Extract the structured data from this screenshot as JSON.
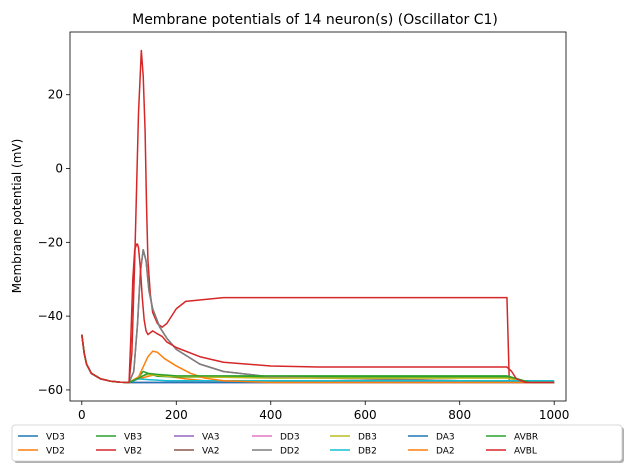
{
  "chart_data": {
    "type": "line",
    "title": "Membrane potentials of 14 neuron(s) (Oscillator C1)",
    "xlabel": "",
    "ylabel": "Membrane potential (mV)",
    "xlim": [
      -25,
      1025
    ],
    "ylim": [
      -63,
      37
    ],
    "xticks": [
      0,
      200,
      400,
      600,
      800,
      1000
    ],
    "yticks": [
      -60,
      -40,
      -20,
      0,
      20
    ],
    "grid": false,
    "legend_position": "bottom",
    "series": [
      {
        "name": "VD3",
        "color": "#1f77b4",
        "x": [
          0,
          5,
          10,
          20,
          40,
          60,
          80,
          100,
          200,
          400,
          600,
          800,
          900,
          950,
          1000
        ],
        "y": [
          -45,
          -50,
          -53,
          -55.5,
          -57,
          -57.6,
          -57.9,
          -58,
          -58,
          -58,
          -58,
          -58,
          -58,
          -58,
          -58
        ]
      },
      {
        "name": "VD2",
        "color": "#ff7f0e",
        "x": [
          0,
          5,
          10,
          20,
          40,
          60,
          80,
          100,
          120,
          150,
          180,
          220,
          260,
          300,
          400,
          600,
          800,
          1000
        ],
        "y": [
          -45,
          -50,
          -53,
          -55.5,
          -57,
          -57.6,
          -57.9,
          -58,
          -57,
          -56,
          -56.3,
          -57,
          -57.5,
          -57.8,
          -58,
          -58,
          -58,
          -58
        ]
      },
      {
        "name": "VB3",
        "color": "#2ca02c",
        "x": [
          0,
          5,
          10,
          20,
          40,
          60,
          80,
          100,
          120,
          130,
          140,
          160,
          200,
          400,
          600,
          800,
          900,
          950,
          1000
        ],
        "y": [
          -45,
          -50,
          -53,
          -55.5,
          -57,
          -57.6,
          -57.9,
          -58,
          -56.5,
          -55,
          -55.5,
          -56.3,
          -56.5,
          -56.5,
          -56.5,
          -56.5,
          -56.5,
          -58,
          -58
        ]
      },
      {
        "name": "VB2",
        "color": "#d62728",
        "x": [
          0,
          5,
          10,
          20,
          40,
          60,
          80,
          100,
          106,
          112,
          116,
          120,
          126,
          130,
          134,
          137,
          140,
          145,
          150,
          160,
          170,
          180,
          190,
          200,
          220,
          300,
          400,
          600,
          800,
          895,
          900,
          905,
          920,
          940,
          1000
        ],
        "y": [
          -45,
          -50,
          -53,
          -55.5,
          -57,
          -57.6,
          -57.9,
          -58,
          -50,
          -25,
          -5,
          15,
          32,
          25,
          10,
          -10,
          -25,
          -34,
          -39,
          -42,
          -43,
          -42,
          -40,
          -38,
          -36,
          -35,
          -35,
          -35,
          -35,
          -35,
          -35,
          -58,
          -58,
          -58,
          -58
        ]
      },
      {
        "name": "VA3",
        "color": "#9467bd",
        "x": [
          0,
          5,
          10,
          20,
          40,
          60,
          80,
          100,
          200,
          400,
          600,
          800,
          1000
        ],
        "y": [
          -45,
          -50,
          -53,
          -55.5,
          -57,
          -57.6,
          -57.9,
          -58,
          -58,
          -58,
          -58,
          -58,
          -58
        ]
      },
      {
        "name": "VA2",
        "color": "#8c564b",
        "x": [
          0,
          5,
          10,
          20,
          40,
          60,
          80,
          100,
          110,
          118,
          124,
          130,
          136,
          142,
          150,
          165,
          180,
          200,
          250,
          300,
          400,
          600,
          800,
          1000
        ],
        "y": [
          -45,
          -50,
          -53,
          -55.5,
          -57,
          -57.6,
          -57.9,
          -58,
          -55,
          -42,
          -28,
          -22,
          -25,
          -33,
          -38,
          -43,
          -46,
          -49,
          -53,
          -55,
          -56.5,
          -57,
          -57.5,
          -58
        ]
      },
      {
        "name": "DD3",
        "color": "#e377c2",
        "x": [
          0,
          5,
          10,
          20,
          40,
          60,
          80,
          100,
          200,
          400,
          600,
          800,
          1000
        ],
        "y": [
          -45,
          -50,
          -53,
          -55.5,
          -57,
          -57.6,
          -57.9,
          -58,
          -58,
          -58,
          -58,
          -58,
          -58
        ]
      },
      {
        "name": "DD2",
        "color": "#7f7f7f",
        "x": [
          0,
          5,
          10,
          20,
          40,
          60,
          80,
          100,
          110,
          118,
          124,
          130,
          136,
          142,
          150,
          165,
          180,
          200,
          250,
          300,
          400,
          600,
          800,
          1000
        ],
        "y": [
          -45,
          -50,
          -53,
          -55.5,
          -57,
          -57.6,
          -57.9,
          -58,
          -55,
          -42,
          -28,
          -22,
          -25,
          -33,
          -38,
          -43,
          -46,
          -49,
          -53,
          -55,
          -56.5,
          -57,
          -57.5,
          -58
        ]
      },
      {
        "name": "DB3",
        "color": "#bcbd22",
        "x": [
          0,
          5,
          10,
          20,
          40,
          60,
          80,
          100,
          120,
          140,
          180,
          400,
          600,
          800,
          900,
          950,
          1000
        ],
        "y": [
          -45,
          -50,
          -53,
          -55.5,
          -57,
          -57.6,
          -57.9,
          -58,
          -56.5,
          -55.8,
          -56.3,
          -56.8,
          -56.8,
          -56.8,
          -56.8,
          -58,
          -58
        ]
      },
      {
        "name": "DB2",
        "color": "#17becf",
        "x": [
          0,
          5,
          10,
          20,
          40,
          60,
          80,
          100,
          120,
          140,
          180,
          400,
          600,
          800,
          1000
        ],
        "y": [
          -45,
          -50,
          -53,
          -55.5,
          -57,
          -57.6,
          -57.9,
          -58,
          -57,
          -57.2,
          -57.5,
          -57.5,
          -57.5,
          -57.5,
          -57.5
        ]
      },
      {
        "name": "DA3",
        "color": "#1f77b4",
        "x": [
          0,
          5,
          10,
          20,
          40,
          60,
          80,
          100,
          200,
          400,
          600,
          800,
          1000
        ],
        "y": [
          -45,
          -50,
          -53,
          -55.5,
          -57,
          -57.6,
          -57.9,
          -58,
          -58,
          -58,
          -58,
          -58,
          -58
        ]
      },
      {
        "name": "DA2",
        "color": "#ff7f0e",
        "x": [
          0,
          5,
          10,
          20,
          40,
          60,
          80,
          100,
          120,
          140,
          150,
          160,
          175,
          200,
          230,
          260,
          300,
          400,
          600,
          800,
          1000
        ],
        "y": [
          -45,
          -50,
          -53,
          -55.5,
          -57,
          -57.6,
          -57.9,
          -58,
          -56.5,
          -51,
          -49.5,
          -49.8,
          -51.5,
          -53.5,
          -55.5,
          -56.8,
          -57.5,
          -58,
          -58,
          -58,
          -58
        ]
      },
      {
        "name": "AVBR",
        "color": "#2ca02c",
        "x": [
          0,
          5,
          10,
          20,
          40,
          60,
          80,
          100,
          120,
          140,
          160,
          200,
          400,
          600,
          800,
          900,
          950,
          1000
        ],
        "y": [
          -45,
          -50,
          -53,
          -55.5,
          -57,
          -57.6,
          -57.9,
          -58,
          -56.8,
          -55.5,
          -55.8,
          -56.2,
          -56.2,
          -56.2,
          -56.2,
          -56.2,
          -58,
          -58
        ]
      },
      {
        "name": "AVBL",
        "color": "#d62728",
        "x": [
          0,
          5,
          10,
          20,
          40,
          60,
          80,
          100,
          104,
          108,
          112,
          116,
          118,
          120,
          124,
          128,
          132,
          136,
          140,
          145,
          150,
          160,
          170,
          180,
          200,
          250,
          300,
          400,
          500,
          600,
          700,
          800,
          900,
          910,
          920,
          940,
          1000
        ],
        "y": [
          -45,
          -50,
          -53,
          -55.5,
          -57,
          -57.6,
          -57.9,
          -58,
          -45,
          -30,
          -22,
          -20.5,
          -20.5,
          -21.5,
          -27,
          -35,
          -41,
          -44,
          -45,
          -44.5,
          -44,
          -44.8,
          -45.5,
          -47,
          -48.5,
          -51,
          -52.5,
          -53.5,
          -53.8,
          -53.8,
          -53.8,
          -53.8,
          -53.8,
          -55,
          -57,
          -58,
          -58
        ]
      }
    ]
  }
}
